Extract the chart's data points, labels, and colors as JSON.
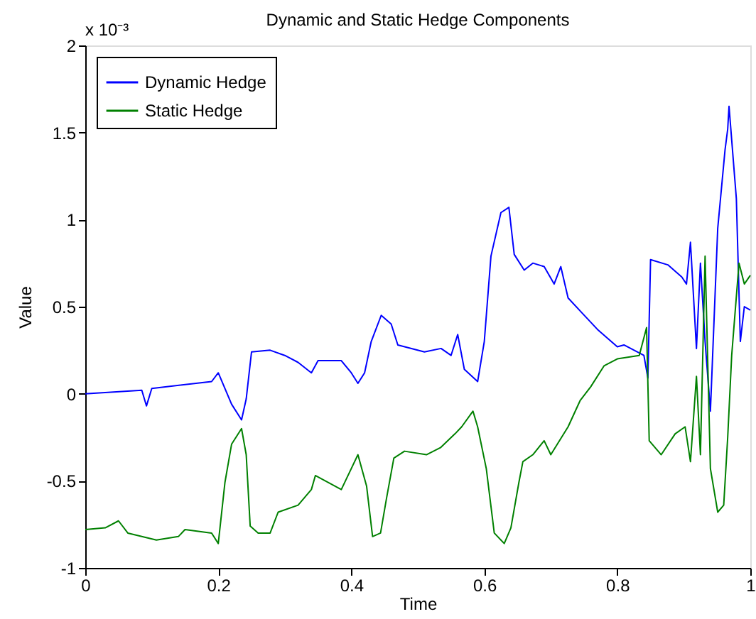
{
  "chart_data": {
    "type": "line",
    "title": "Dynamic and Static Hedge Components",
    "xlabel": "Time",
    "ylabel": "Value",
    "annotations": [
      "x 10⁻³"
    ],
    "xlim": [
      0,
      1
    ],
    "ylim": [
      -1,
      2
    ],
    "xticks": [
      0,
      0.2,
      0.4,
      0.6,
      0.8,
      1
    ],
    "yticks": [
      -1,
      -0.5,
      0,
      0.5,
      1,
      1.5,
      2
    ],
    "grid": false,
    "legend": "top left",
    "marker": "none",
    "line_style": "solid",
    "series": [
      {
        "name": "Dynamic Hedge",
        "color": "#0000ff",
        "x": [
          0,
          0.085,
          0.092,
          0.1,
          0.19,
          0.2,
          0.22,
          0.235,
          0.242,
          0.25,
          0.278,
          0.3,
          0.32,
          0.34,
          0.35,
          0.385,
          0.4,
          0.41,
          0.42,
          0.43,
          0.445,
          0.46,
          0.47,
          0.51,
          0.535,
          0.55,
          0.56,
          0.57,
          0.59,
          0.6,
          0.61,
          0.625,
          0.637,
          0.645,
          0.66,
          0.673,
          0.69,
          0.705,
          0.715,
          0.726,
          0.748,
          0.77,
          0.8,
          0.81,
          0.84,
          0.846,
          0.85,
          0.876,
          0.897,
          0.904,
          0.91,
          0.919,
          0.925,
          0.932,
          0.94,
          0.951,
          0.962,
          0.966,
          0.968,
          0.979,
          0.985,
          0.991,
          1
        ],
        "values": [
          0,
          0.02,
          -0.07,
          0.03,
          0.07,
          0.12,
          -0.06,
          -0.15,
          -0.03,
          0.24,
          0.25,
          0.22,
          0.18,
          0.12,
          0.19,
          0.19,
          0.12,
          0.06,
          0.12,
          0.3,
          0.45,
          0.4,
          0.28,
          0.24,
          0.26,
          0.22,
          0.34,
          0.14,
          0.07,
          0.3,
          0.79,
          1.04,
          1.07,
          0.8,
          0.71,
          0.75,
          0.73,
          0.63,
          0.73,
          0.55,
          0.46,
          0.37,
          0.27,
          0.28,
          0.22,
          0.09,
          0.77,
          0.74,
          0.67,
          0.63,
          0.87,
          0.26,
          0.75,
          0.3,
          -0.1,
          0.95,
          1.4,
          1.52,
          1.65,
          1.12,
          0.3,
          0.5,
          0.48
        ]
      },
      {
        "name": "Static Hedge",
        "color": "#008000",
        "x": [
          0,
          0.03,
          0.05,
          0.064,
          0.107,
          0.14,
          0.15,
          0.19,
          0.2,
          0.21,
          0.22,
          0.235,
          0.242,
          0.248,
          0.26,
          0.278,
          0.29,
          0.32,
          0.34,
          0.346,
          0.385,
          0.4,
          0.41,
          0.423,
          0.432,
          0.444,
          0.453,
          0.464,
          0.48,
          0.513,
          0.534,
          0.556,
          0.566,
          0.583,
          0.59,
          0.603,
          0.615,
          0.63,
          0.64,
          0.652,
          0.658,
          0.673,
          0.69,
          0.7,
          0.726,
          0.744,
          0.76,
          0.78,
          0.8,
          0.833,
          0.844,
          0.848,
          0.866,
          0.887,
          0.902,
          0.91,
          0.919,
          0.925,
          0.932,
          0.94,
          0.951,
          0.96,
          0.966,
          0.972,
          0.983,
          0.991,
          1
        ],
        "values": [
          -0.78,
          -0.77,
          -0.73,
          -0.8,
          -0.84,
          -0.82,
          -0.78,
          -0.8,
          -0.86,
          -0.51,
          -0.29,
          -0.2,
          -0.35,
          -0.76,
          -0.8,
          -0.8,
          -0.68,
          -0.64,
          -0.55,
          -0.47,
          -0.55,
          -0.43,
          -0.35,
          -0.53,
          -0.82,
          -0.8,
          -0.6,
          -0.37,
          -0.33,
          -0.35,
          -0.31,
          -0.23,
          -0.19,
          -0.1,
          -0.19,
          -0.43,
          -0.8,
          -0.86,
          -0.77,
          -0.51,
          -0.39,
          -0.35,
          -0.27,
          -0.35,
          -0.19,
          -0.04,
          0.04,
          0.16,
          0.2,
          0.22,
          0.38,
          -0.27,
          -0.35,
          -0.23,
          -0.19,
          -0.39,
          0.1,
          -0.35,
          0.79,
          -0.43,
          -0.68,
          -0.64,
          -0.25,
          0.22,
          0.75,
          0.63,
          0.68
        ]
      }
    ]
  }
}
